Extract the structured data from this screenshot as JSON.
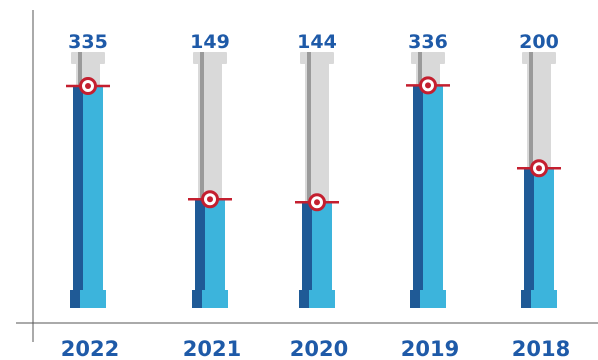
{
  "chart_data": {
    "type": "bar",
    "categories": [
      "2022",
      "2021",
      "2020",
      "2019",
      "2018"
    ],
    "values": [
      335,
      149,
      144,
      336,
      200
    ],
    "value_labels": [
      "335",
      "149",
      "144",
      "336",
      "200"
    ],
    "ylim": [
      0,
      400
    ],
    "grid": false,
    "legend": "none"
  },
  "colors": {
    "value_text": "#1e5aa8",
    "year_text": "#1e5aa8",
    "fill_light": "#3cb4dc",
    "fill_dark": "#1f5a96",
    "tube_light": "#d9d9d9",
    "tube_dark": "#9a9a9a",
    "marker": "#c41f2f",
    "axis": "#555555"
  }
}
